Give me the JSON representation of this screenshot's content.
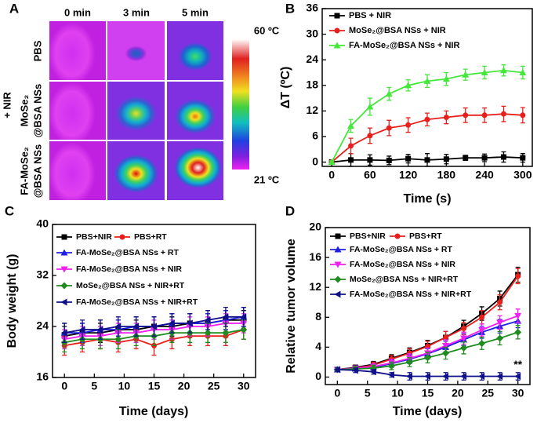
{
  "panel_a": {
    "letter": "A",
    "columns": [
      "0 min",
      "3 min",
      "5 min"
    ],
    "rows": [
      [
        "PBS"
      ],
      [
        "MoSe₂",
        "@BSA NSs"
      ],
      [
        "FA-MoSe₂",
        "@BSA NSs"
      ]
    ],
    "group_label": "+ NIR",
    "scale_max": "60 ºC",
    "scale_min": "21 ºC"
  },
  "chart_data": [
    {
      "type": "line",
      "panel": "B",
      "xlabel": "Time (s)",
      "ylabel": "ΔT (ºC)",
      "xlim": [
        -15,
        315
      ],
      "ylim": [
        -1,
        36
      ],
      "xticks": [
        0,
        60,
        120,
        180,
        240,
        300
      ],
      "yticks": [
        0,
        6,
        12,
        18,
        24,
        30,
        36
      ],
      "legend": "upper left",
      "x": [
        0,
        30,
        60,
        90,
        120,
        150,
        180,
        210,
        240,
        270,
        300
      ],
      "series": [
        {
          "name": "PBS + NIR",
          "color": "#000000",
          "marker": "square",
          "values": [
            0,
            0.5,
            0.5,
            0.4,
            0.8,
            0.5,
            0.7,
            1.0,
            1.0,
            1.2,
            1.0
          ],
          "errors": [
            0.3,
            1.5,
            1.2,
            1.0,
            1.0,
            1.5,
            1.1,
            0.6,
            0.9,
            1.2,
            1.0
          ]
        },
        {
          "name": "MoSe₂@BSA NSs + NIR",
          "color": "#e8201c",
          "marker": "circle",
          "values": [
            0,
            3.8,
            6.2,
            8.0,
            8.7,
            10.0,
            10.5,
            11.0,
            11.0,
            11.3,
            11.0
          ],
          "errors": [
            0.3,
            1.8,
            1.8,
            1.8,
            1.7,
            1.5,
            1.5,
            1.7,
            1.7,
            1.8,
            1.8
          ]
        },
        {
          "name": "FA-MoSe₂@BSA NSs + NIR",
          "color": "#44e83a",
          "marker": "triangle-up",
          "values": [
            0,
            8.5,
            13.0,
            16.0,
            18.0,
            19.0,
            19.5,
            20.5,
            21.0,
            21.5,
            21.0
          ],
          "errors": [
            0.3,
            1.5,
            2.0,
            1.5,
            1.3,
            1.5,
            1.5,
            1.3,
            1.5,
            1.3,
            1.5
          ]
        }
      ]
    },
    {
      "type": "line",
      "panel": "C",
      "xlabel": "Time (days)",
      "ylabel": "Body weight (g)",
      "xlim": [
        -2,
        32
      ],
      "ylim": [
        16,
        40
      ],
      "xticks": [
        0,
        5,
        10,
        15,
        20,
        25,
        30
      ],
      "yticks": [
        16,
        24,
        32,
        40
      ],
      "legend": "upper left",
      "x": [
        0,
        3,
        6,
        9,
        12,
        15,
        18,
        21,
        24,
        27,
        30
      ],
      "series": [
        {
          "name": "PBS+NIR",
          "color": "#000000",
          "marker": "square",
          "values": [
            22.5,
            23,
            23,
            23.5,
            23.5,
            24,
            24,
            24.5,
            24.5,
            25,
            25
          ],
          "errors": [
            1.5,
            1.5,
            1.5,
            1.5,
            1.5,
            1.5,
            1.5,
            1.5,
            1.5,
            1.5,
            1.5
          ]
        },
        {
          "name": "PBS+RT",
          "color": "#e8201c",
          "marker": "circle",
          "values": [
            21,
            21.5,
            22,
            21.5,
            22,
            21,
            22,
            22.5,
            22.5,
            22.5,
            23.5
          ],
          "errors": [
            1.5,
            1.5,
            1.5,
            1.5,
            1.5,
            1.5,
            1.5,
            1.5,
            1.5,
            1.5,
            1.5
          ]
        },
        {
          "name": "FA-MoSe₂@BSA NSs + RT",
          "color": "#2020e0",
          "marker": "triangle-up",
          "values": [
            23,
            23,
            23.5,
            23.5,
            24,
            24,
            24.5,
            24.5,
            24.5,
            25,
            25.5
          ],
          "errors": [
            1.5,
            1.5,
            1.5,
            1.5,
            1.5,
            1.5,
            1.5,
            1.5,
            1.5,
            1.5,
            1.5
          ]
        },
        {
          "name": "FA-MoSe₂@BSA NSs + NIR",
          "color": "#f020f0",
          "marker": "triangle-down",
          "values": [
            22,
            22.5,
            22.5,
            23,
            23,
            23.5,
            23.5,
            24,
            24,
            24.5,
            24.5
          ],
          "errors": [
            1.5,
            1.5,
            1.5,
            1.5,
            1.5,
            1.5,
            1.5,
            1.5,
            1.5,
            1.5,
            1.5
          ]
        },
        {
          "name": "MoSe₂@BSA NSs + NIR+RT",
          "color": "#1e8c1e",
          "marker": "diamond",
          "values": [
            21.5,
            22,
            22,
            22,
            22.5,
            22.5,
            23,
            23,
            23,
            23,
            23.5
          ],
          "errors": [
            1.5,
            1.5,
            1.5,
            1.5,
            1.5,
            1.5,
            1.5,
            1.5,
            1.5,
            1.5,
            1.5
          ]
        },
        {
          "name": "FA-MoSe₂@BSA NSs + NIR+RT",
          "color": "#10108a",
          "marker": "triangle-left",
          "values": [
            23,
            23.5,
            23.5,
            24,
            24,
            24,
            24.5,
            24.5,
            25,
            25.5,
            25.5
          ],
          "errors": [
            1.5,
            1.5,
            1.5,
            1.5,
            1.5,
            1.5,
            1.5,
            1.5,
            1.5,
            1.5,
            1.5
          ]
        }
      ]
    },
    {
      "type": "line",
      "panel": "D",
      "xlabel": "Time (days)",
      "ylabel": "Relative tumor volume",
      "xlim": [
        -2,
        32
      ],
      "ylim": [
        -1,
        20
      ],
      "xticks": [
        0,
        5,
        10,
        15,
        20,
        25,
        30
      ],
      "yticks": [
        0,
        4,
        8,
        12,
        16,
        20
      ],
      "legend": "upper left",
      "annotation": "**",
      "x": [
        0,
        3,
        6,
        9,
        12,
        15,
        18,
        21,
        24,
        27,
        30
      ],
      "series": [
        {
          "name": "PBS+NIR",
          "color": "#000000",
          "marker": "square",
          "values": [
            1,
            1.3,
            1.7,
            2.5,
            3.3,
            4.2,
            5.3,
            6.8,
            8.5,
            10.5,
            13.7
          ],
          "errors": [
            0.3,
            0.3,
            0.4,
            0.5,
            0.6,
            0.7,
            0.8,
            0.8,
            0.9,
            1.0,
            1.0
          ]
        },
        {
          "name": "PBS+RT",
          "color": "#e8201c",
          "marker": "circle",
          "values": [
            1,
            1.2,
            1.6,
            2.4,
            3.2,
            4.1,
            5.3,
            6.5,
            8.0,
            10.0,
            13.5
          ],
          "errors": [
            0.3,
            0.3,
            0.4,
            0.5,
            0.6,
            0.7,
            0.8,
            0.8,
            0.9,
            1.0,
            1.0
          ]
        },
        {
          "name": "FA-MoSe₂@BSA NSs + RT",
          "color": "#2020e0",
          "marker": "triangle-up",
          "values": [
            1,
            1.1,
            1.3,
            1.8,
            2.4,
            3.1,
            4.0,
            5.0,
            6.0,
            6.8,
            7.5
          ],
          "errors": [
            0.3,
            0.3,
            0.4,
            0.5,
            0.6,
            0.7,
            0.8,
            0.8,
            0.8,
            0.9,
            0.9
          ]
        },
        {
          "name": "FA-MoSe₂@BSA NSs + NIR",
          "color": "#f020f0",
          "marker": "triangle-down",
          "values": [
            1,
            1.2,
            1.4,
            1.9,
            2.5,
            3.2,
            4.2,
            5.2,
            6.3,
            7.3,
            8.2
          ],
          "errors": [
            0.3,
            0.3,
            0.4,
            0.5,
            0.6,
            0.7,
            0.8,
            0.8,
            0.8,
            0.9,
            0.9
          ]
        },
        {
          "name": "MoSe₂@BSA NSs + NIR+RT",
          "color": "#1e8c1e",
          "marker": "diamond",
          "values": [
            1,
            1.1,
            1.2,
            1.5,
            2.0,
            2.6,
            3.2,
            3.9,
            4.5,
            5.2,
            6.0
          ],
          "errors": [
            0.3,
            0.3,
            0.4,
            0.5,
            0.6,
            0.7,
            0.8,
            0.8,
            0.8,
            0.9,
            0.9
          ]
        },
        {
          "name": "FA-MoSe₂@BSA NSs + NIR+RT",
          "color": "#10108a",
          "marker": "triangle-left",
          "values": [
            1,
            0.9,
            0.7,
            0.3,
            0.1,
            0.1,
            0.1,
            0.1,
            0.1,
            0.1,
            0.1
          ],
          "errors": [
            0.3,
            0.3,
            0.3,
            0.3,
            0.5,
            0.5,
            0.5,
            0.5,
            0.5,
            0.5,
            0.5
          ]
        }
      ]
    }
  ]
}
